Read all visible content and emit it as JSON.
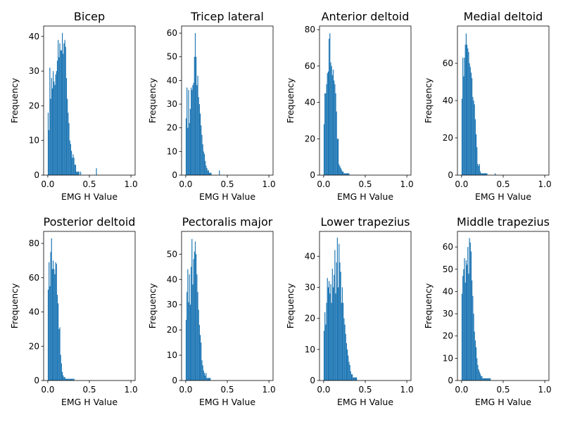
{
  "chart_data": [
    {
      "type": "bar",
      "title": "Bicep",
      "xlabel": "EMG H Value",
      "ylabel": "Frequency",
      "xlim": [
        -0.05,
        1.05
      ],
      "ylim": [
        0,
        43
      ],
      "xticks": [
        0,
        0.5,
        1
      ],
      "xtick_labels": [
        "0.0",
        "0.5",
        "1.0"
      ],
      "yticks": [
        0,
        10,
        20,
        30,
        40
      ],
      "bin_width": 0.01,
      "values": [
        18,
        13,
        31,
        22,
        28,
        25,
        30,
        27,
        26,
        29,
        30,
        33,
        39,
        34,
        38,
        36,
        36,
        41,
        35,
        38,
        39,
        37,
        28,
        22,
        18,
        15,
        10,
        9,
        7,
        5,
        6,
        5,
        3,
        3,
        1,
        1,
        1,
        1,
        0,
        1,
        0,
        0,
        0,
        0,
        0,
        0,
        0,
        0,
        0,
        0,
        0,
        0,
        0,
        0,
        0,
        0,
        0,
        0,
        2
      ]
    },
    {
      "type": "bar",
      "title": "Tricep lateral",
      "xlabel": "EMG H Value",
      "ylabel": "Frequency",
      "xlim": [
        -0.05,
        1.05
      ],
      "ylim": [
        0,
        63
      ],
      "xticks": [
        0,
        0.5,
        1
      ],
      "xtick_labels": [
        "0.0",
        "0.5",
        "1.0"
      ],
      "yticks": [
        0,
        10,
        20,
        30,
        40,
        50,
        60
      ],
      "bin_width": 0.01,
      "values": [
        24,
        37,
        20,
        36,
        22,
        28,
        37,
        36,
        38,
        39,
        50,
        60,
        50,
        38,
        42,
        33,
        30,
        26,
        21,
        17,
        13,
        10,
        9,
        6,
        4,
        3,
        2,
        2,
        1,
        1,
        1,
        0,
        0,
        0,
        0,
        0,
        0,
        0,
        0,
        0,
        2
      ]
    },
    {
      "type": "bar",
      "title": "Anterior deltoid",
      "xlabel": "EMG H Value",
      "ylabel": "Frequency",
      "xlim": [
        -0.05,
        1.05
      ],
      "ylim": [
        0,
        82
      ],
      "xticks": [
        0,
        0.5,
        1
      ],
      "xtick_labels": [
        "0.0",
        "0.5",
        "1.0"
      ],
      "yticks": [
        0,
        20,
        40,
        60,
        80
      ],
      "bin_width": 0.01,
      "values": [
        28,
        45,
        45,
        50,
        56,
        57,
        75,
        78,
        62,
        60,
        55,
        58,
        52,
        50,
        45,
        35,
        20,
        20,
        6,
        5,
        4,
        3,
        2,
        2,
        1,
        1,
        1,
        1,
        1,
        1,
        1
      ]
    },
    {
      "type": "bar",
      "title": "Medial deltoid",
      "xlabel": "EMG H Value",
      "ylabel": "Frequency",
      "xlim": [
        -0.05,
        1.05
      ],
      "ylim": [
        0,
        80
      ],
      "xticks": [
        0,
        0.5,
        1
      ],
      "xtick_labels": [
        "0.0",
        "0.5",
        "1.0"
      ],
      "yticks": [
        0,
        20,
        40,
        60
      ],
      "bin_width": 0.01,
      "values": [
        41,
        63,
        53,
        63,
        70,
        76,
        70,
        68,
        66,
        60,
        58,
        55,
        52,
        42,
        40,
        38,
        30,
        22,
        15,
        6,
        5,
        6,
        2,
        1,
        1,
        1,
        1,
        1,
        1,
        1,
        1,
        0,
        0,
        0,
        0,
        0,
        0,
        0,
        0,
        0,
        1
      ]
    },
    {
      "type": "bar",
      "title": "Posterior deltoid",
      "xlabel": "EMG H Value",
      "ylabel": "Frequency",
      "xlim": [
        -0.05,
        1.05
      ],
      "ylim": [
        0,
        87
      ],
      "xticks": [
        0,
        0.5,
        1
      ],
      "xtick_labels": [
        "0.0",
        "0.5",
        "1.0"
      ],
      "yticks": [
        0,
        20,
        40,
        60,
        80
      ],
      "bin_width": 0.01,
      "values": [
        53,
        69,
        55,
        75,
        83,
        65,
        70,
        65,
        62,
        69,
        68,
        50,
        45,
        30,
        31,
        15,
        10,
        5,
        3,
        2,
        2,
        1,
        1,
        1,
        1,
        1,
        1,
        1,
        1,
        1,
        1,
        1
      ]
    },
    {
      "type": "bar",
      "title": "Pectoralis major",
      "xlabel": "EMG H Value",
      "ylabel": "Frequency",
      "xlim": [
        -0.05,
        1.05
      ],
      "ylim": [
        0,
        59
      ],
      "xticks": [
        0,
        0.5,
        1
      ],
      "xtick_labels": [
        "0.0",
        "0.5",
        "1.0"
      ],
      "yticks": [
        0,
        10,
        20,
        30,
        40,
        50
      ],
      "bin_width": 0.01,
      "values": [
        24,
        35,
        44,
        31,
        42,
        30,
        45,
        56,
        38,
        48,
        51,
        55,
        50,
        42,
        35,
        28,
        22,
        18,
        15,
        8,
        6,
        4,
        3,
        2,
        3,
        1,
        1,
        1,
        1,
        1
      ]
    },
    {
      "type": "bar",
      "title": "Lower trapezius",
      "xlabel": "EMG H Value",
      "ylabel": "Frequency",
      "xlim": [
        -0.05,
        1.05
      ],
      "ylim": [
        0,
        48
      ],
      "xticks": [
        0,
        0.5,
        1
      ],
      "xtick_labels": [
        "0.0",
        "0.5",
        "1.0"
      ],
      "yticks": [
        0,
        10,
        20,
        30,
        40
      ],
      "bin_width": 0.01,
      "values": [
        16,
        22,
        18,
        25,
        33,
        30,
        32,
        28,
        31,
        25,
        36,
        30,
        34,
        42,
        28,
        38,
        46,
        30,
        44,
        38,
        35,
        25,
        30,
        25,
        20,
        18,
        15,
        12,
        10,
        8,
        6,
        5,
        3,
        2,
        2,
        1,
        1,
        1,
        1,
        1
      ]
    },
    {
      "type": "bar",
      "title": "Middle trapezius",
      "xlabel": "EMG H Value",
      "ylabel": "Frequency",
      "xlim": [
        -0.05,
        1.05
      ],
      "ylim": [
        0,
        67
      ],
      "xticks": [
        0,
        0.5,
        1
      ],
      "xtick_labels": [
        "0.0",
        "0.5",
        "1.0"
      ],
      "yticks": [
        0,
        10,
        20,
        30,
        40,
        50,
        60
      ],
      "bin_width": 0.01,
      "values": [
        39,
        47,
        50,
        55,
        44,
        54,
        52,
        60,
        48,
        64,
        62,
        58,
        45,
        38,
        30,
        22,
        18,
        15,
        10,
        7,
        5,
        4,
        3,
        2,
        2,
        1,
        1,
        1,
        1,
        1,
        1,
        1,
        1,
        1,
        1
      ]
    }
  ],
  "colors": {
    "bar": "#1f77b4",
    "axis": "#000000"
  }
}
